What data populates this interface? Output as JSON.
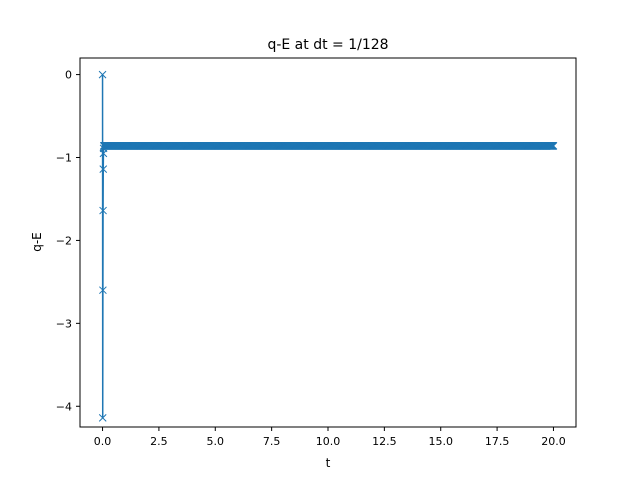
{
  "chart_data": {
    "type": "line",
    "title": "q-E at dt = 1/128",
    "xlabel": "t",
    "ylabel": "q-E",
    "xlim": [
      -1.0,
      21.0
    ],
    "ylim": [
      -4.25,
      0.2
    ],
    "xticks": [
      0.0,
      2.5,
      5.0,
      7.5,
      10.0,
      12.5,
      15.0,
      17.5,
      20.0
    ],
    "xtick_labels": [
      "0.0",
      "2.5",
      "5.0",
      "7.5",
      "10.0",
      "12.5",
      "15.0",
      "17.5",
      "20.0"
    ],
    "yticks": [
      0,
      -1,
      -2,
      -3,
      -4
    ],
    "ytick_labels": [
      "0",
      "−1",
      "−2",
      "−3",
      "−4"
    ],
    "grid": false,
    "marker": "x",
    "color": "#1f77b4",
    "dt": 0.0078125,
    "t_end": 20.0,
    "transient": [
      {
        "t": 0.0,
        "y": 0.0
      },
      {
        "t": 0.0078125,
        "y": -4.14
      },
      {
        "t": 0.015625,
        "y": -2.6
      },
      {
        "t": 0.0234375,
        "y": -1.64
      },
      {
        "t": 0.03125,
        "y": -1.14
      },
      {
        "t": 0.0390625,
        "y": -0.95
      },
      {
        "t": 0.046875,
        "y": -0.89
      }
    ],
    "steady_value": -0.86
  }
}
